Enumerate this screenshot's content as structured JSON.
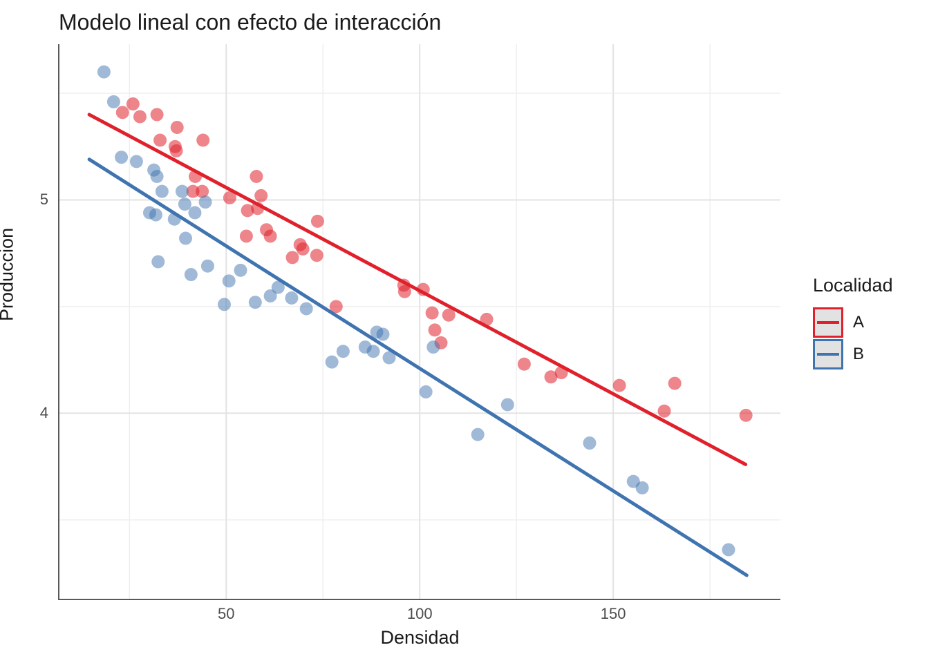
{
  "title": "Modelo lineal con efecto de interacción",
  "colors": {
    "series_a": "#e0212b",
    "series_b": "#3f74b0",
    "grid_major": "#e3e3e3",
    "grid_minor": "#efefef",
    "axis_line": "#595959",
    "tick_text": "#4d4d4d",
    "text": "#1a1a1a",
    "legend_key_bg": "#e2e2e2",
    "background": "#ffffff"
  },
  "chart_data": {
    "type": "scatter",
    "title": "Modelo lineal con efecto de interacción",
    "xlabel": "Densidad",
    "ylabel": "Produccion",
    "xlim": [
      6.9,
      193.2
    ],
    "ylim": [
      3.13,
      5.73
    ],
    "x_major_ticks": [
      50,
      100,
      150
    ],
    "x_minor_ticks": [
      25,
      75,
      125,
      175
    ],
    "y_major_ticks": [
      4,
      5
    ],
    "y_minor_ticks": [
      3.5,
      4.5,
      5.5
    ],
    "grid": true,
    "point_radius": 9.5,
    "line_width": 5,
    "legend": {
      "title": "Localidad",
      "position": "right",
      "items": [
        {
          "label": "A",
          "color": "#e0212b"
        },
        {
          "label": "B",
          "color": "#3f74b0"
        }
      ]
    },
    "series": [
      {
        "name": "A",
        "color": "#e0212b",
        "point_opacity": 0.55,
        "points": [
          [
            23.2,
            5.41
          ],
          [
            25.9,
            5.45
          ],
          [
            27.7,
            5.39
          ],
          [
            32.1,
            5.4
          ],
          [
            32.9,
            5.28
          ],
          [
            36.8,
            5.25
          ],
          [
            37.1,
            5.23
          ],
          [
            37.3,
            5.34
          ],
          [
            41.4,
            5.04
          ],
          [
            42.0,
            5.11
          ],
          [
            43.8,
            5.04
          ],
          [
            44.0,
            5.28
          ],
          [
            50.9,
            5.01
          ],
          [
            55.2,
            4.83
          ],
          [
            55.5,
            4.95
          ],
          [
            57.8,
            5.11
          ],
          [
            58.1,
            4.96
          ],
          [
            59.0,
            5.02
          ],
          [
            60.4,
            4.86
          ],
          [
            61.4,
            4.83
          ],
          [
            67.1,
            4.73
          ],
          [
            69.1,
            4.79
          ],
          [
            69.8,
            4.77
          ],
          [
            73.4,
            4.74
          ],
          [
            73.6,
            4.9
          ],
          [
            78.4,
            4.5
          ],
          [
            95.9,
            4.6
          ],
          [
            96.1,
            4.57
          ],
          [
            100.9,
            4.58
          ],
          [
            103.2,
            4.47
          ],
          [
            103.9,
            4.39
          ],
          [
            105.5,
            4.33
          ],
          [
            107.5,
            4.46
          ],
          [
            117.3,
            4.44
          ],
          [
            127.0,
            4.23
          ],
          [
            133.9,
            4.17
          ],
          [
            136.6,
            4.19
          ],
          [
            151.6,
            4.13
          ],
          [
            163.2,
            4.01
          ],
          [
            165.9,
            4.14
          ],
          [
            184.3,
            3.99
          ]
        ],
        "trend_line": {
          "x1": 14.6,
          "y1": 5.4,
          "x2": 184.2,
          "y2": 3.76
        }
      },
      {
        "name": "B",
        "color": "#3f74b0",
        "point_opacity": 0.5,
        "points": [
          [
            18.4,
            5.6
          ],
          [
            20.9,
            5.46
          ],
          [
            22.9,
            5.2
          ],
          [
            26.8,
            5.18
          ],
          [
            30.2,
            4.94
          ],
          [
            31.3,
            5.14
          ],
          [
            31.8,
            4.93
          ],
          [
            32.1,
            5.11
          ],
          [
            32.4,
            4.71
          ],
          [
            33.4,
            5.04
          ],
          [
            36.6,
            4.91
          ],
          [
            38.6,
            5.04
          ],
          [
            39.3,
            4.98
          ],
          [
            39.5,
            4.82
          ],
          [
            40.9,
            4.65
          ],
          [
            41.9,
            4.94
          ],
          [
            44.6,
            4.99
          ],
          [
            45.2,
            4.69
          ],
          [
            49.5,
            4.51
          ],
          [
            50.7,
            4.62
          ],
          [
            53.7,
            4.67
          ],
          [
            57.5,
            4.52
          ],
          [
            61.4,
            4.55
          ],
          [
            63.4,
            4.59
          ],
          [
            66.9,
            4.54
          ],
          [
            70.7,
            4.49
          ],
          [
            77.3,
            4.24
          ],
          [
            80.2,
            4.29
          ],
          [
            85.9,
            4.31
          ],
          [
            88.0,
            4.29
          ],
          [
            88.9,
            4.38
          ],
          [
            90.5,
            4.37
          ],
          [
            92.1,
            4.26
          ],
          [
            101.6,
            4.1
          ],
          [
            103.5,
            4.31
          ],
          [
            115.0,
            3.9
          ],
          [
            122.7,
            4.04
          ],
          [
            143.9,
            3.86
          ],
          [
            155.2,
            3.68
          ],
          [
            157.5,
            3.65
          ],
          [
            179.8,
            3.36
          ]
        ],
        "trend_line": {
          "x1": 14.6,
          "y1": 5.19,
          "x2": 184.5,
          "y2": 3.24
        }
      }
    ]
  }
}
